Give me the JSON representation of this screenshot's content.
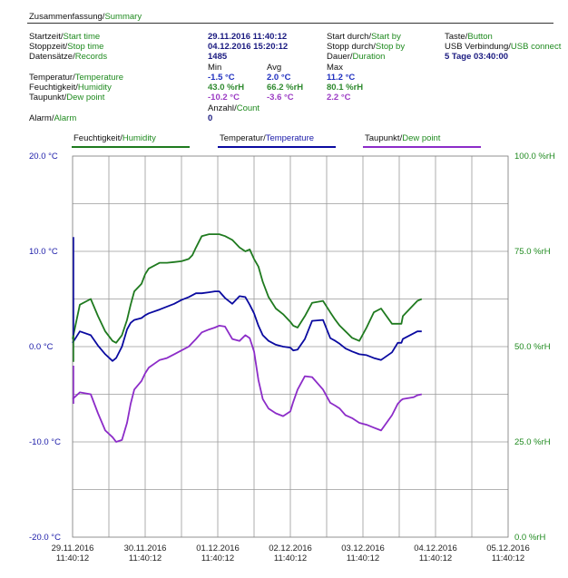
{
  "summary": {
    "title_de": "Zusammenfassung",
    "title_en": "Summary",
    "start_time": {
      "de": "Startzeit",
      "en": "Start time",
      "value": "29.11.2016 11:40:12"
    },
    "stop_time": {
      "de": "Stoppzeit",
      "en": "Stop time",
      "value": "04.12.2016 15:20:12"
    },
    "records": {
      "de": "Datensätze",
      "en": "Records",
      "value": "1485"
    },
    "start_by": {
      "de": "Start durch",
      "en": "Start by",
      "value_de": "Taste",
      "value_en": "Button"
    },
    "stop_by": {
      "de": "Stopp durch",
      "en": "Stop by",
      "value_de": "USB Verbindung",
      "value_en": "USB connect"
    },
    "duration": {
      "de": "Dauer",
      "en": "Duration",
      "value": "5 Tage 03:40:00"
    },
    "col_min": "Min",
    "col_avg": "Avg",
    "col_max": "Max",
    "temperature": {
      "de": "Temperatur",
      "en": "Temperature",
      "min": "-1.5 °C",
      "avg": "2.0 °C",
      "max": "11.2 °C"
    },
    "humidity": {
      "de": "Feuchtigkeit",
      "en": "Humidity",
      "min": "43.0 %rH",
      "avg": "66.2 %rH",
      "max": "80.1 %rH"
    },
    "dewpoint": {
      "de": "Taupunkt",
      "en": "Dew point",
      "min": "-10.2 °C",
      "avg": "-3.6 °C",
      "max": "2.2 °C"
    },
    "count_de": "Anzahl",
    "count_en": "Count",
    "alarm": {
      "de": "Alarm",
      "en": "Alarm",
      "count": "0"
    }
  },
  "legend": [
    {
      "de": "Feuchtigkeit",
      "en": "Humidity",
      "color": "#1f7a1f"
    },
    {
      "de": "Temperatur",
      "en": "Temperature",
      "color": "#0a0aa0"
    },
    {
      "de": "Taupunkt",
      "en": "Dew point",
      "color": "#8c2cc8"
    }
  ],
  "colors": {
    "humidity": "#1f7a1f",
    "temperature": "#0a0aa0",
    "dewpoint": "#8c2cc8",
    "left_axis": "#1a1aa8",
    "right_axis": "#1f8a1f",
    "grid": "#9a9a9a"
  },
  "chart_data": {
    "type": "line",
    "left_axis": {
      "unit": "°C",
      "ylim": [
        -20,
        20
      ],
      "ticks": [
        "20.0 °C",
        "10.0 °C",
        "0.0 °C",
        "-10.0 °C",
        "-20.0 °C"
      ]
    },
    "right_axis": {
      "unit": "%rH",
      "ylim": [
        0,
        100
      ],
      "ticks": [
        "100.0 %rH",
        "75.0 %rH",
        "50.0 %rH",
        "25.0 %rH",
        "0.0 %rH"
      ]
    },
    "x_axis": {
      "xlim": [
        "29.11.2016 11:40:12",
        "05.12.2016 11:40:12"
      ],
      "ticks": [
        {
          "date": "29.11.2016",
          "time": "11:40:12"
        },
        {
          "date": "30.11.2016",
          "time": "11:40:12"
        },
        {
          "date": "01.12.2016",
          "time": "11:40:12"
        },
        {
          "date": "02.12.2016",
          "time": "11:40:12"
        },
        {
          "date": "03.12.2016",
          "time": "11:40:12"
        },
        {
          "date": "04.12.2016",
          "time": "11:40:12"
        },
        {
          "date": "05.12.2016",
          "time": "11:40:12"
        }
      ]
    },
    "grid": true,
    "x_day_positions": [
      0,
      0.1,
      0.25,
      0.35,
      0.45,
      0.55,
      0.6,
      0.68,
      0.75,
      0.8,
      0.85,
      0.95,
      1.0,
      1.05,
      1.2,
      1.3,
      1.4,
      1.5,
      1.6,
      1.65,
      1.7,
      1.78,
      1.88,
      1.96,
      2.02,
      2.1,
      2.2,
      2.3,
      2.38,
      2.44,
      2.5,
      2.56,
      2.62,
      2.7,
      2.8,
      2.9,
      3.0,
      3.04,
      3.1,
      3.2,
      3.3,
      3.45,
      3.55,
      3.62,
      3.68,
      3.76,
      3.85,
      3.95,
      4.05,
      4.15,
      4.25,
      4.4,
      4.48,
      4.53,
      4.55,
      4.7,
      4.75,
      4.81
    ],
    "series": [
      {
        "name": "Humidity",
        "axis": "right",
        "values": [
          52,
          61,
          62.5,
          58,
          54,
          51.5,
          51,
          53,
          57,
          61,
          64.5,
          66.5,
          69,
          70.5,
          72,
          72,
          72.2,
          72.4,
          73,
          74,
          76,
          79,
          79.5,
          79.5,
          79.5,
          79,
          78,
          76,
          75,
          75.5,
          73,
          71,
          67,
          63,
          60,
          58.5,
          56.5,
          55.5,
          55,
          58,
          61.5,
          62,
          59,
          57,
          55.5,
          54,
          52.3,
          51.5,
          55,
          59,
          60,
          56,
          56,
          56,
          58,
          61,
          62,
          62.5
        ]
      },
      {
        "name": "Temperature",
        "axis": "left",
        "values": [
          0.4,
          1.6,
          1.2,
          0.1,
          -0.8,
          -1.5,
          -1.2,
          0,
          1.8,
          2.5,
          2.8,
          3.0,
          3.3,
          3.5,
          3.9,
          4.2,
          4.5,
          4.9,
          5.2,
          5.4,
          5.6,
          5.6,
          5.7,
          5.8,
          5.8,
          5.1,
          4.5,
          5.3,
          5.2,
          4.4,
          3.5,
          2.2,
          1.2,
          0.6,
          0.2,
          0,
          -0.1,
          -0.4,
          -0.3,
          0.8,
          2.7,
          2.8,
          0.9,
          0.6,
          0.3,
          -0.2,
          -0.5,
          -0.8,
          -0.9,
          -1.2,
          -1.4,
          -0.6,
          0.4,
          0.4,
          0.8,
          1.4,
          1.6,
          1.6
        ]
      },
      {
        "name": "Dew point",
        "axis": "left",
        "values": [
          -5.5,
          -4.8,
          -5,
          -7,
          -8.8,
          -9.5,
          -10,
          -9.8,
          -8,
          -6,
          -4.5,
          -3.6,
          -2.8,
          -2.2,
          -1.4,
          -1.2,
          -0.8,
          -0.4,
          0,
          0.4,
          0.8,
          1.5,
          1.8,
          2.0,
          2.2,
          2.1,
          0.8,
          0.6,
          1.2,
          0.9,
          -0.5,
          -3.5,
          -5.5,
          -6.5,
          -7,
          -7.3,
          -6.8,
          -5.8,
          -4.5,
          -3.1,
          -3.2,
          -4.5,
          -5.9,
          -6.2,
          -6.5,
          -7.2,
          -7.5,
          -8.0,
          -8.2,
          -8.5,
          -8.8,
          -7.2,
          -6,
          -5.6,
          -5.5,
          -5.3,
          -5.1,
          -5.0
        ]
      }
    ]
  }
}
